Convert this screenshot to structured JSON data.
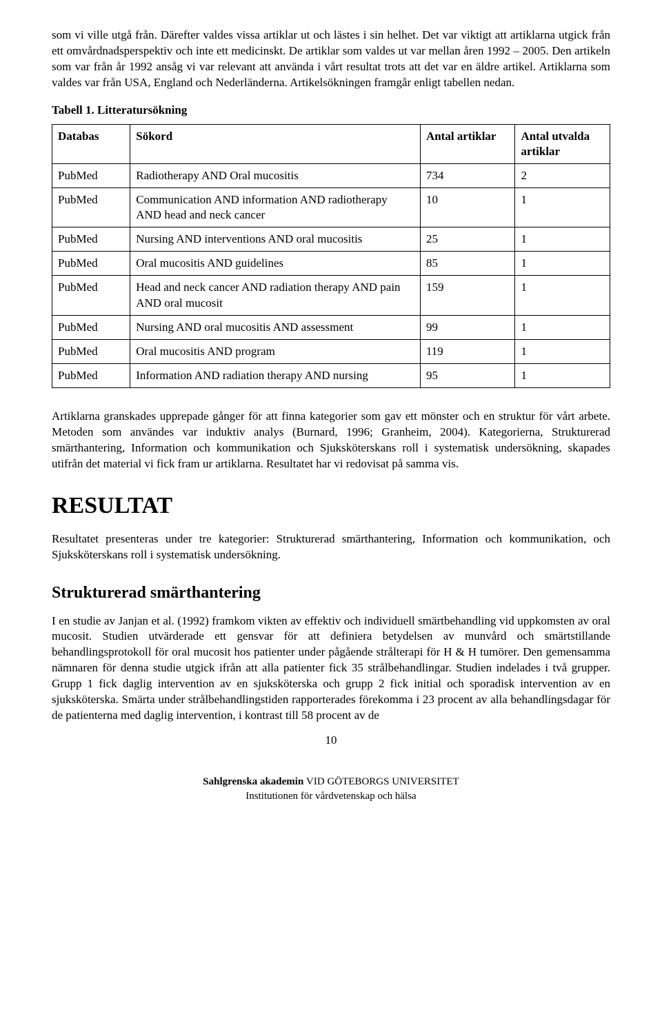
{
  "paragraphs": {
    "intro": "som vi ville utgå från. Därefter valdes vissa artiklar ut och lästes i sin helhet. Det var viktigt att artiklarna utgick från ett omvårdnadsperspektiv och inte ett medicinskt. De artiklar som valdes ut var mellan åren 1992 – 2005. Den artikeln som var från år 1992 ansåg vi var relevant att använda i vårt resultat trots att det var en äldre artikel. Artiklarna som valdes var från USA, England och Nederländerna. Artikelsökningen framgår enligt tabellen nedan.",
    "after_table": "Artiklarna granskades upprepade gånger för att finna kategorier som gav ett mönster och en struktur för vårt arbete. Metoden som användes var induktiv analys (Burnard, 1996; Granheim, 2004). Kategorierna, Strukturerad smärthantering, Information och kommunikation och Sjuksköterskans roll i systematisk undersökning, skapades utifrån det material vi fick fram ur artiklarna. Resultatet har vi redovisat på samma vis.",
    "result_intro": "Resultatet presenteras under tre kategorier: Strukturerad smärthantering, Information och kommunikation, och Sjuksköterskans roll i systematisk undersökning.",
    "struct_body": "I en studie av Janjan et al. (1992) framkom vikten av effektiv och individuell smärtbehandling vid uppkomsten av oral mucosit. Studien utvärderade ett gensvar för att definiera betydelsen av munvård och smärtstillande behandlingsprotokoll för oral mucosit hos patienter under pågående strålterapi för H & H tumörer. Den gemensamma nämnaren för denna studie utgick ifrån att alla patienter fick 35 strålbehandlingar. Studien indelades i två grupper. Grupp 1 fick daglig intervention av en sjuksköterska och grupp 2 fick initial och sporadisk intervention av en sjuksköterska. Smärta under strålbehandlingstiden rapporterades förekomma i 23 procent av alla behandlingsdagar för de patienterna med daglig intervention, i kontrast till 58 procent av de"
  },
  "table_caption": "Tabell 1. Litteratursökning",
  "table": {
    "headers": [
      "Databas",
      "Sökord",
      "Antal artiklar",
      "Antal utvalda artiklar"
    ],
    "rows": [
      [
        "PubMed",
        "Radiotherapy AND Oral mucositis",
        "734",
        "2"
      ],
      [
        "PubMed",
        "Communication AND information AND radiotherapy AND head and neck cancer",
        "10",
        "1"
      ],
      [
        "PubMed",
        "Nursing AND interventions AND oral mucositis",
        "25",
        "1"
      ],
      [
        "PubMed",
        "Oral mucositis AND guidelines",
        "85",
        "1"
      ],
      [
        "PubMed",
        "Head and neck cancer AND radiation therapy AND pain AND oral mucosit",
        "159",
        "1"
      ],
      [
        "PubMed",
        "Nursing AND oral mucositis AND assessment",
        "99",
        "1"
      ],
      [
        "PubMed",
        "Oral mucositis AND program",
        "119",
        "1"
      ],
      [
        "PubMed",
        "Information AND radiation therapy AND nursing",
        "95",
        "1"
      ]
    ]
  },
  "headings": {
    "result": "RESULTAT",
    "struct": "Strukturerad smärthantering"
  },
  "page_number": "10",
  "footer": {
    "line1a": "Sahlgrenska akademin ",
    "line1b": "VID GÖTEBORGS UNIVERSITET",
    "line2": "Institutionen för vårdvetenskap och hälsa"
  }
}
